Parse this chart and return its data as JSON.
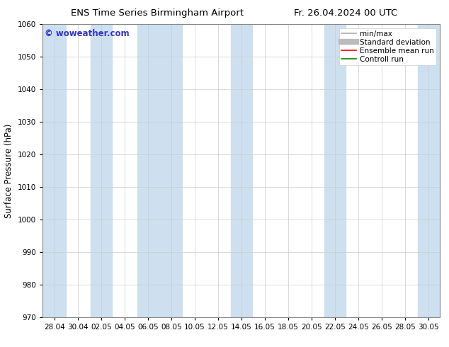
{
  "title_left": "ENS Time Series Birmingham Airport",
  "title_right": "Fr. 26.04.2024 00 UTC",
  "ylabel": "Surface Pressure (hPa)",
  "ylim": [
    970,
    1060
  ],
  "yticks": [
    970,
    980,
    990,
    1000,
    1010,
    1020,
    1030,
    1040,
    1050,
    1060
  ],
  "xtick_labels": [
    "28.04",
    "30.04",
    "02.05",
    "04.05",
    "06.05",
    "08.05",
    "10.05",
    "12.05",
    "14.05",
    "16.05",
    "18.05",
    "20.05",
    "22.05",
    "24.05",
    "26.05",
    "28.05",
    "30.05"
  ],
  "watermark": "© woweather.com",
  "watermark_color": "#3333cc",
  "band_color": "#cce0f0",
  "bg_color": "#ffffff",
  "legend_items": [
    {
      "label": "min/max",
      "color": "#aaaaaa",
      "lw": 1.2
    },
    {
      "label": "Standard deviation",
      "color": "#bbbbbb",
      "lw": 6
    },
    {
      "label": "Ensemble mean run",
      "color": "#ff0000",
      "lw": 1.2
    },
    {
      "label": "Controll run",
      "color": "#008800",
      "lw": 1.2
    }
  ],
  "grid_color": "#cccccc",
  "tick_label_fontsize": 7.5,
  "title_fontsize": 9.5,
  "ylabel_fontsize": 8.5,
  "legend_fontsize": 7.5,
  "watermark_fontsize": 8.5
}
